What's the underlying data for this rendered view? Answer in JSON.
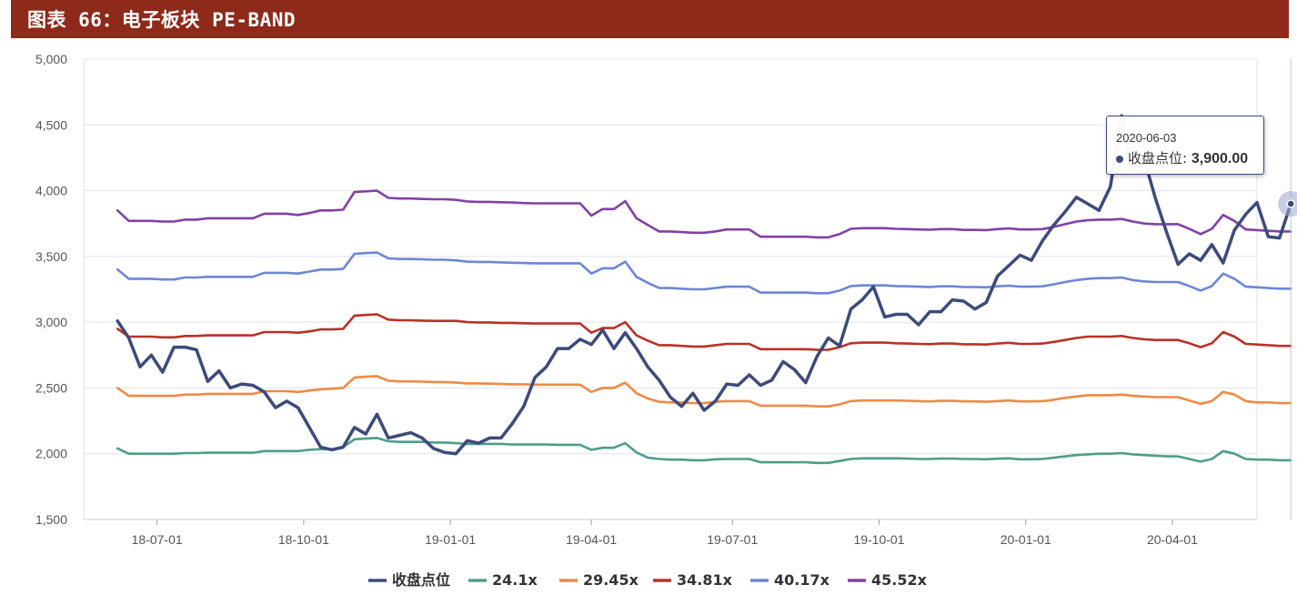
{
  "header": {
    "title": "图表 66：电子板块 PE-BAND"
  },
  "colors": {
    "header_bg": "#8e2a1a",
    "close": "#3d4a7a",
    "b1": "#4e9e88",
    "b2": "#ee8a45",
    "b3": "#b83227",
    "b4": "#6d86d6",
    "b5": "#8141a6"
  },
  "tooltip": {
    "date": "2020-06-03",
    "label": "收盘点位:",
    "value": "3,900.00"
  },
  "chart_data": {
    "type": "line",
    "title": "电子板块 PE-BAND",
    "xlabel": "",
    "ylabel": "",
    "ylim": [
      1500,
      5000
    ],
    "yticks": [
      1500,
      2000,
      2500,
      3000,
      3500,
      4000,
      4500,
      5000
    ],
    "ytick_labels": [
      "1,500",
      "2,000",
      "2,500",
      "3,000",
      "3,500",
      "4,000",
      "4,500",
      "5,000"
    ],
    "xlim": [
      -3,
      101
    ],
    "xticks": [
      {
        "x": 3.5,
        "label": "18-07-01"
      },
      {
        "x": 16.5,
        "label": "18-10-01"
      },
      {
        "x": 29.5,
        "label": "19-01-01"
      },
      {
        "x": 42.0,
        "label": "19-04-01"
      },
      {
        "x": 54.5,
        "label": "19-07-01"
      },
      {
        "x": 67.5,
        "label": "19-10-01"
      },
      {
        "x": 80.5,
        "label": "20-01-01"
      },
      {
        "x": 93.5,
        "label": "20-04-01"
      }
    ],
    "grid": true,
    "legend_position": "bottom",
    "series": [
      {
        "name": "收盘点位",
        "key": "close",
        "values": [
          3010,
          2880,
          2660,
          2750,
          2620,
          2810,
          2810,
          2790,
          2550,
          2630,
          2500,
          2530,
          2520,
          2470,
          2350,
          2400,
          2350,
          2200,
          2050,
          2030,
          2050,
          2200,
          2150,
          2300,
          2120,
          2140,
          2160,
          2120,
          2040,
          2010,
          2000,
          2100,
          2080,
          2120,
          2120,
          2230,
          2360,
          2580,
          2660,
          2800,
          2800,
          2870,
          2830,
          2940,
          2800,
          2920,
          2800,
          2660,
          2560,
          2430,
          2360,
          2460,
          2330,
          2400,
          2530,
          2520,
          2600,
          2520,
          2560,
          2700,
          2640,
          2540,
          2740,
          2880,
          2820,
          3100,
          3170,
          3270,
          3040,
          3060,
          3060,
          2980,
          3080,
          3080,
          3170,
          3160,
          3100,
          3150,
          3350,
          3430,
          3510,
          3470,
          3620,
          3740,
          3840,
          3950,
          3900,
          3850,
          4030,
          4570,
          4170,
          4240,
          3940,
          3680,
          3440,
          3520,
          3470,
          3590,
          3450,
          3700,
          3820,
          3910,
          3650,
          3640,
          3900
        ]
      },
      {
        "name": "24.1x",
        "key": "b1",
        "values": [
          2040,
          2000,
          2000,
          2000,
          2000,
          2000,
          2005,
          2005,
          2008,
          2008,
          2008,
          2008,
          2008,
          2020,
          2020,
          2020,
          2020,
          2030,
          2035,
          2035,
          2050,
          2110,
          2115,
          2120,
          2095,
          2090,
          2090,
          2090,
          2085,
          2085,
          2080,
          2075,
          2075,
          2075,
          2075,
          2070,
          2070,
          2070,
          2070,
          2068,
          2068,
          2068,
          2030,
          2045,
          2045,
          2080,
          2010,
          1970,
          1960,
          1955,
          1955,
          1950,
          1950,
          1958,
          1960,
          1960,
          1960,
          1935,
          1935,
          1935,
          1935,
          1935,
          1930,
          1930,
          1945,
          1960,
          1965,
          1965,
          1965,
          1965,
          1963,
          1960,
          1960,
          1963,
          1963,
          1960,
          1960,
          1958,
          1962,
          1965,
          1958,
          1958,
          1960,
          1970,
          1980,
          1990,
          1995,
          2000,
          2000,
          2005,
          1995,
          1990,
          1985,
          1980,
          1980,
          1960,
          1940,
          1960,
          2020,
          2000,
          1960,
          1955,
          1955,
          1950,
          1950
        ]
      },
      {
        "name": "29.45x",
        "key": "b2",
        "values": [
          2500,
          2440,
          2440,
          2440,
          2440,
          2440,
          2450,
          2450,
          2455,
          2455,
          2455,
          2455,
          2455,
          2475,
          2475,
          2475,
          2470,
          2480,
          2490,
          2495,
          2500,
          2580,
          2585,
          2590,
          2555,
          2550,
          2550,
          2548,
          2545,
          2545,
          2540,
          2535,
          2535,
          2533,
          2530,
          2528,
          2528,
          2525,
          2525,
          2525,
          2525,
          2525,
          2470,
          2500,
          2500,
          2540,
          2460,
          2420,
          2395,
          2390,
          2390,
          2385,
          2385,
          2395,
          2400,
          2400,
          2400,
          2365,
          2365,
          2365,
          2365,
          2365,
          2360,
          2360,
          2375,
          2400,
          2405,
          2405,
          2405,
          2405,
          2403,
          2400,
          2398,
          2402,
          2402,
          2398,
          2398,
          2395,
          2400,
          2405,
          2398,
          2398,
          2400,
          2410,
          2425,
          2435,
          2445,
          2445,
          2445,
          2450,
          2440,
          2435,
          2430,
          2430,
          2430,
          2405,
          2380,
          2400,
          2470,
          2450,
          2400,
          2390,
          2390,
          2385,
          2385
        ]
      },
      {
        "name": "34.81x",
        "key": "b3",
        "values": [
          2950,
          2890,
          2890,
          2890,
          2885,
          2885,
          2895,
          2895,
          2900,
          2900,
          2900,
          2900,
          2900,
          2925,
          2925,
          2925,
          2920,
          2930,
          2945,
          2945,
          2950,
          3050,
          3055,
          3060,
          3020,
          3015,
          3015,
          3012,
          3010,
          3010,
          3010,
          3000,
          2998,
          2998,
          2995,
          2995,
          2992,
          2990,
          2990,
          2990,
          2990,
          2990,
          2920,
          2955,
          2955,
          3000,
          2900,
          2860,
          2825,
          2825,
          2820,
          2815,
          2815,
          2825,
          2835,
          2835,
          2835,
          2795,
          2795,
          2795,
          2795,
          2795,
          2790,
          2790,
          2810,
          2840,
          2845,
          2845,
          2845,
          2840,
          2838,
          2835,
          2833,
          2838,
          2838,
          2832,
          2832,
          2830,
          2838,
          2843,
          2835,
          2835,
          2838,
          2850,
          2865,
          2880,
          2890,
          2890,
          2890,
          2895,
          2880,
          2870,
          2865,
          2865,
          2865,
          2840,
          2810,
          2840,
          2925,
          2890,
          2835,
          2830,
          2825,
          2820,
          2820
        ]
      },
      {
        "name": "40.17x",
        "key": "b4",
        "values": [
          3400,
          3330,
          3330,
          3330,
          3325,
          3325,
          3340,
          3340,
          3345,
          3345,
          3345,
          3345,
          3345,
          3375,
          3375,
          3375,
          3370,
          3385,
          3400,
          3400,
          3405,
          3520,
          3525,
          3530,
          3485,
          3480,
          3480,
          3478,
          3475,
          3475,
          3470,
          3460,
          3458,
          3458,
          3455,
          3452,
          3450,
          3448,
          3448,
          3448,
          3448,
          3448,
          3370,
          3410,
          3410,
          3460,
          3345,
          3300,
          3260,
          3260,
          3255,
          3250,
          3250,
          3260,
          3270,
          3270,
          3270,
          3225,
          3225,
          3225,
          3225,
          3225,
          3220,
          3220,
          3240,
          3275,
          3280,
          3280,
          3280,
          3275,
          3273,
          3270,
          3268,
          3273,
          3273,
          3267,
          3267,
          3265,
          3273,
          3278,
          3270,
          3270,
          3273,
          3288,
          3305,
          3320,
          3330,
          3335,
          3335,
          3340,
          3320,
          3310,
          3305,
          3305,
          3305,
          3275,
          3240,
          3275,
          3370,
          3330,
          3270,
          3265,
          3260,
          3255,
          3255
        ]
      },
      {
        "name": "45.52x",
        "key": "b5",
        "values": [
          3850,
          3770,
          3770,
          3770,
          3765,
          3765,
          3780,
          3780,
          3790,
          3790,
          3790,
          3790,
          3790,
          3825,
          3825,
          3825,
          3815,
          3830,
          3850,
          3850,
          3855,
          3990,
          3995,
          4000,
          3945,
          3940,
          3940,
          3937,
          3935,
          3935,
          3930,
          3918,
          3915,
          3915,
          3912,
          3910,
          3906,
          3904,
          3904,
          3904,
          3904,
          3904,
          3810,
          3860,
          3860,
          3920,
          3790,
          3740,
          3690,
          3690,
          3685,
          3680,
          3680,
          3690,
          3705,
          3705,
          3705,
          3650,
          3650,
          3650,
          3650,
          3650,
          3645,
          3645,
          3670,
          3710,
          3715,
          3715,
          3715,
          3710,
          3708,
          3705,
          3703,
          3708,
          3708,
          3702,
          3702,
          3700,
          3708,
          3713,
          3705,
          3705,
          3708,
          3725,
          3745,
          3765,
          3775,
          3780,
          3780,
          3785,
          3765,
          3750,
          3745,
          3745,
          3745,
          3710,
          3670,
          3710,
          3815,
          3770,
          3705,
          3700,
          3695,
          3690,
          3690
        ]
      }
    ]
  }
}
